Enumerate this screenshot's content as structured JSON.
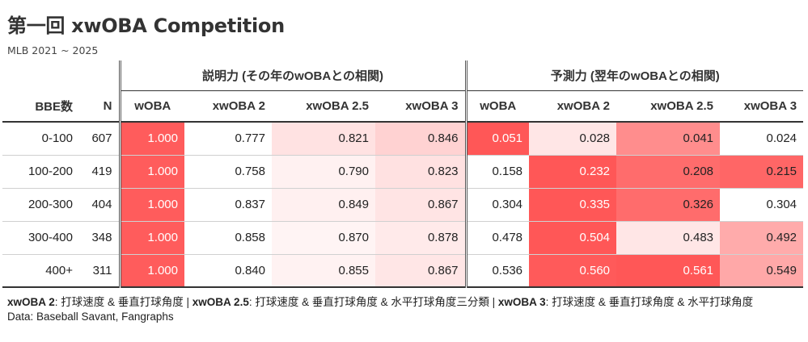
{
  "title": "第一回 xwOBA Competition",
  "subtitle": "MLB 2021 ~ 2025",
  "groups": {
    "explain": "説明力 (その年のwOBAとの相関)",
    "predict": "予測力 (翌年のwOBAとの相関)"
  },
  "columns": {
    "bbe": "BBE数",
    "n": "N",
    "woba": "wOBA",
    "xwoba2": "xwOBA 2",
    "xwoba25": "xwOBA 2.5",
    "xwoba3": "xwOBA 3"
  },
  "rows": [
    {
      "bbe": "0-100",
      "n": "607",
      "e": [
        "1.000",
        "0.777",
        "0.821",
        "0.846"
      ],
      "ec": [
        "#ff5c5c",
        "#ffffff",
        "#ffe2e2",
        "#ffd2d2"
      ],
      "et": [
        "#ffffff",
        "#222222",
        "#222222",
        "#222222"
      ],
      "p": [
        "0.051",
        "0.028",
        "0.041",
        "0.024"
      ],
      "pc": [
        "#ff5757",
        "#ffe6e6",
        "#ff8d8d",
        "#ffffff"
      ],
      "pt": [
        "#ffffff",
        "#222222",
        "#222222",
        "#222222"
      ]
    },
    {
      "bbe": "100-200",
      "n": "419",
      "e": [
        "1.000",
        "0.758",
        "0.790",
        "0.823"
      ],
      "ec": [
        "#ff5c5c",
        "#ffffff",
        "#fff1f1",
        "#ffe1e1"
      ],
      "et": [
        "#ffffff",
        "#222222",
        "#222222",
        "#222222"
      ],
      "p": [
        "0.158",
        "0.232",
        "0.208",
        "0.215"
      ],
      "pc": [
        "#ffffff",
        "#ff5757",
        "#ff6c6c",
        "#ff6666"
      ],
      "pt": [
        "#222222",
        "#ffffff",
        "#222222",
        "#222222"
      ]
    },
    {
      "bbe": "200-300",
      "n": "404",
      "e": [
        "1.000",
        "0.837",
        "0.849",
        "0.867"
      ],
      "ec": [
        "#ff5c5c",
        "#ffffff",
        "#fff0f0",
        "#ffe4e4"
      ],
      "et": [
        "#ffffff",
        "#222222",
        "#222222",
        "#222222"
      ],
      "p": [
        "0.304",
        "0.335",
        "0.326",
        "0.304"
      ],
      "pc": [
        "#ffffff",
        "#ff5757",
        "#ff6c6c",
        "#ffffff"
      ],
      "pt": [
        "#222222",
        "#ffffff",
        "#222222",
        "#222222"
      ]
    },
    {
      "bbe": "300-400",
      "n": "348",
      "e": [
        "1.000",
        "0.858",
        "0.870",
        "0.878"
      ],
      "ec": [
        "#ff5c5c",
        "#ffffff",
        "#fff4f4",
        "#ffeaea"
      ],
      "et": [
        "#ffffff",
        "#222222",
        "#222222",
        "#222222"
      ],
      "p": [
        "0.478",
        "0.504",
        "0.483",
        "0.492"
      ],
      "pc": [
        "#ffffff",
        "#ff5757",
        "#ffe6e6",
        "#ffabab"
      ],
      "pt": [
        "#222222",
        "#ffffff",
        "#222222",
        "#222222"
      ]
    },
    {
      "bbe": "400+",
      "n": "311",
      "e": [
        "1.000",
        "0.840",
        "0.855",
        "0.867"
      ],
      "ec": [
        "#ff5c5c",
        "#ffffff",
        "#fff2f2",
        "#ffe6e6"
      ],
      "et": [
        "#ffffff",
        "#222222",
        "#222222",
        "#222222"
      ],
      "p": [
        "0.536",
        "0.560",
        "0.561",
        "0.549"
      ],
      "pc": [
        "#ffffff",
        "#ff5a5a",
        "#ff5757",
        "#ffa8a8"
      ],
      "pt": [
        "#222222",
        "#ffffff",
        "#ffffff",
        "#222222"
      ]
    }
  ],
  "footnote": {
    "k1": "xwOBA 2",
    "v1": ": 打球速度 & 垂直打球角度 | ",
    "k2": "xwOBA 2.5",
    "v2": ": 打球速度 & 垂直打球角度 & 水平打球角度三分類 | ",
    "k3": "xwOBA 3",
    "v3": ": 打球速度 & 垂直打球角度 & 水平打球角度"
  },
  "source": "Data: Baseball Savant, Fangraphs"
}
